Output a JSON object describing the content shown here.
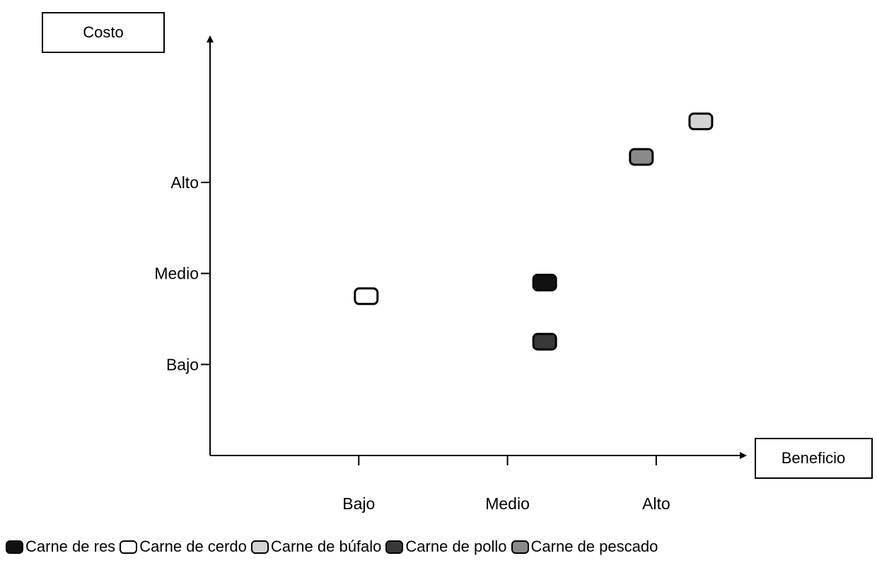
{
  "chart_data": {
    "type": "scatter",
    "ylabel": "Costo",
    "xlabel": "Beneficio",
    "x_ticks": [
      "Bajo",
      "Medio",
      "Alto"
    ],
    "y_ticks": [
      "Bajo",
      "Medio",
      "Alto"
    ],
    "xlim": [
      0,
      3.6
    ],
    "ylim": [
      0,
      4.6
    ],
    "grid": false,
    "legend_position": "bottom",
    "series": [
      {
        "name": "Carne de res",
        "fill": "#111111",
        "x": 2.25,
        "y": 1.9
      },
      {
        "name": "Carne de cerdo",
        "fill": "#ffffff",
        "x": 1.05,
        "y": 1.75
      },
      {
        "name": "Carne de búfalo",
        "fill": "#d4d4d4",
        "x": 3.3,
        "y": 3.67
      },
      {
        "name": "Carne de pollo",
        "fill": "#383838",
        "x": 2.25,
        "y": 1.25
      },
      {
        "name": "Carne de pescado",
        "fill": "#8a8a8a",
        "x": 2.9,
        "y": 3.28
      }
    ]
  }
}
